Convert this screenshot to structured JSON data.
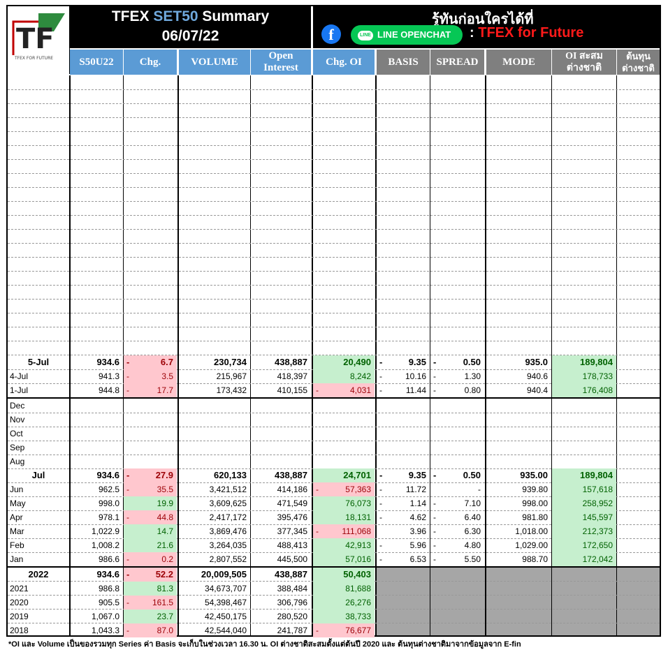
{
  "logo": {
    "letters": "TF",
    "caption": "TFEX FOR FUTURE"
  },
  "header": {
    "title_prefix": "TFEX",
    "title_accent": "SET50",
    "title_suffix": "Summary",
    "date": "06/07/22",
    "promo": "รู้ทันก่อนใครได้ที่",
    "facebook_glyph": "f",
    "line_chip": "LINE",
    "line_button": "LINE OPENCHAT",
    "channel_sep": ":",
    "channel": "TFEX for Future"
  },
  "columns": {
    "contract": "S50U22",
    "chg": "Chg.",
    "volume": "VOLUME",
    "oi_1": "Open",
    "oi_2": "Interest",
    "chg_oi": "Chg. OI",
    "basis": "BASIS",
    "spread": "SPREAD",
    "mode": "MODE",
    "foreign_oi_1": "OI สะสม",
    "foreign_oi_2": "ต่างชาติ",
    "foreign_cost_1": "ต้นทุน",
    "foreign_cost_2": "ต่างชาติ"
  },
  "colors": {
    "positive_bg": "#c6efce",
    "positive_text": "#006100",
    "negative_bg": "#ffc7ce",
    "negative_text": "#9c0006",
    "header_blue": "#5b9bd5",
    "header_gray": "#7f7f7f"
  },
  "daily_rows": [
    {
      "label": "5-Jul",
      "price": "934.6",
      "chg": "6.7",
      "chg_sign": "-",
      "volume": "230,734",
      "oi": "438,887",
      "chg_oi": "20,490",
      "chg_oi_sign": "",
      "basis_sign": "-",
      "basis": "9.35",
      "spread_sign": "-",
      "spread": "0.50",
      "mode": "935.0",
      "foreign_oi": "189,804",
      "bold": true
    },
    {
      "label": "4-Jul",
      "price": "941.3",
      "chg": "3.5",
      "chg_sign": "-",
      "volume": "215,967",
      "oi": "418,397",
      "chg_oi": "8,242",
      "chg_oi_sign": "",
      "basis_sign": "-",
      "basis": "10.16",
      "spread_sign": "-",
      "spread": "1.30",
      "mode": "940.6",
      "foreign_oi": "178,733",
      "bold": false
    },
    {
      "label": "1-Jul",
      "price": "944.8",
      "chg": "17.7",
      "chg_sign": "-",
      "volume": "173,432",
      "oi": "410,155",
      "chg_oi": "4,031",
      "chg_oi_sign": "-",
      "basis_sign": "-",
      "basis": "11.44",
      "spread_sign": "-",
      "spread": "0.80",
      "mode": "940.4",
      "foreign_oi": "176,408",
      "bold": false
    }
  ],
  "empty_months": [
    "Dec",
    "Nov",
    "Oct",
    "Sep",
    "Aug"
  ],
  "monthly_rows": [
    {
      "label": "Jul",
      "price": "934.6",
      "chg": "27.9",
      "chg_sign": "-",
      "volume": "620,133",
      "oi": "438,887",
      "chg_oi": "24,701",
      "chg_oi_sign": "",
      "basis_sign": "-",
      "basis": "9.35",
      "spread_sign": "-",
      "spread": "0.50",
      "mode": "935.00",
      "foreign_oi": "189,804",
      "bold": true
    },
    {
      "label": "Jun",
      "price": "962.5",
      "chg": "35.5",
      "chg_sign": "-",
      "volume": "3,421,512",
      "oi": "414,186",
      "chg_oi": "57,363",
      "chg_oi_sign": "-",
      "basis_sign": "-",
      "basis": "11.72",
      "spread_sign": "",
      "spread": "-",
      "mode": "939.80",
      "foreign_oi": "157,618",
      "bold": false
    },
    {
      "label": "May",
      "price": "998.0",
      "chg": "19.9",
      "chg_sign": "",
      "volume": "3,609,625",
      "oi": "471,549",
      "chg_oi": "76,073",
      "chg_oi_sign": "",
      "basis_sign": "-",
      "basis": "1.14",
      "spread_sign": "-",
      "spread": "7.10",
      "mode": "998.00",
      "foreign_oi": "258,952",
      "bold": false
    },
    {
      "label": "Apr",
      "price": "978.1",
      "chg": "44.8",
      "chg_sign": "-",
      "volume": "2,417,172",
      "oi": "395,476",
      "chg_oi": "18,131",
      "chg_oi_sign": "",
      "basis_sign": "-",
      "basis": "4.62",
      "spread_sign": "-",
      "spread": "6.40",
      "mode": "981.80",
      "foreign_oi": "145,597",
      "bold": false
    },
    {
      "label": "Mar",
      "price": "1,022.9",
      "chg": "14.7",
      "chg_sign": "",
      "volume": "3,869,476",
      "oi": "377,345",
      "chg_oi": "111,068",
      "chg_oi_sign": "-",
      "basis_sign": "",
      "basis": "3.96",
      "spread_sign": "-",
      "spread": "6.30",
      "mode": "1,018.00",
      "foreign_oi": "212,373",
      "bold": false
    },
    {
      "label": "Feb",
      "price": "1,008.2",
      "chg": "21.6",
      "chg_sign": "",
      "volume": "3,264,035",
      "oi": "488,413",
      "chg_oi": "42,913",
      "chg_oi_sign": "",
      "basis_sign": "-",
      "basis": "5.96",
      "spread_sign": "-",
      "spread": "4.80",
      "mode": "1,029.00",
      "foreign_oi": "172,650",
      "bold": false
    },
    {
      "label": "Jan",
      "price": "986.6",
      "chg": "0.2",
      "chg_sign": "-",
      "volume": "2,807,552",
      "oi": "445,500",
      "chg_oi": "57,016",
      "chg_oi_sign": "",
      "basis_sign": "-",
      "basis": "6.53",
      "spread_sign": "-",
      "spread": "5.50",
      "mode": "988.70",
      "foreign_oi": "172,042",
      "bold": false
    }
  ],
  "yearly_rows": [
    {
      "label": "2022",
      "price": "934.6",
      "chg": "52.2",
      "chg_sign": "-",
      "volume": "20,009,505",
      "oi": "438,887",
      "chg_oi": "50,403",
      "chg_oi_sign": "",
      "bold": true
    },
    {
      "label": "2021",
      "price": "986.8",
      "chg": "81.3",
      "chg_sign": "",
      "volume": "34,673,707",
      "oi": "388,484",
      "chg_oi": "81,688",
      "chg_oi_sign": "",
      "bold": false
    },
    {
      "label": "2020",
      "price": "905.5",
      "chg": "161.5",
      "chg_sign": "-",
      "volume": "54,398,467",
      "oi": "306,796",
      "chg_oi": "26,276",
      "chg_oi_sign": "",
      "bold": false
    },
    {
      "label": "2019",
      "price": "1,067.0",
      "chg": "23.7",
      "chg_sign": "",
      "volume": "42,450,175",
      "oi": "280,520",
      "chg_oi": "38,733",
      "chg_oi_sign": "",
      "bold": false
    },
    {
      "label": "2018",
      "price": "1,043.3",
      "chg": "87.0",
      "chg_sign": "-",
      "volume": "42,544,040",
      "oi": "241,787",
      "chg_oi": "76,677",
      "chg_oi_sign": "-",
      "bold": false
    }
  ],
  "footer": "*OI และ Volume เป็นของรวมทุก Series ค่า Basis จะเก็บในช่วงเวลา 16.30 น. OI ต่างชาติสะสมตั้งแต่ต้นปี 2020 และ ต้นทุนต่างชาติมาจากข้อมูลจาก E-fin"
}
